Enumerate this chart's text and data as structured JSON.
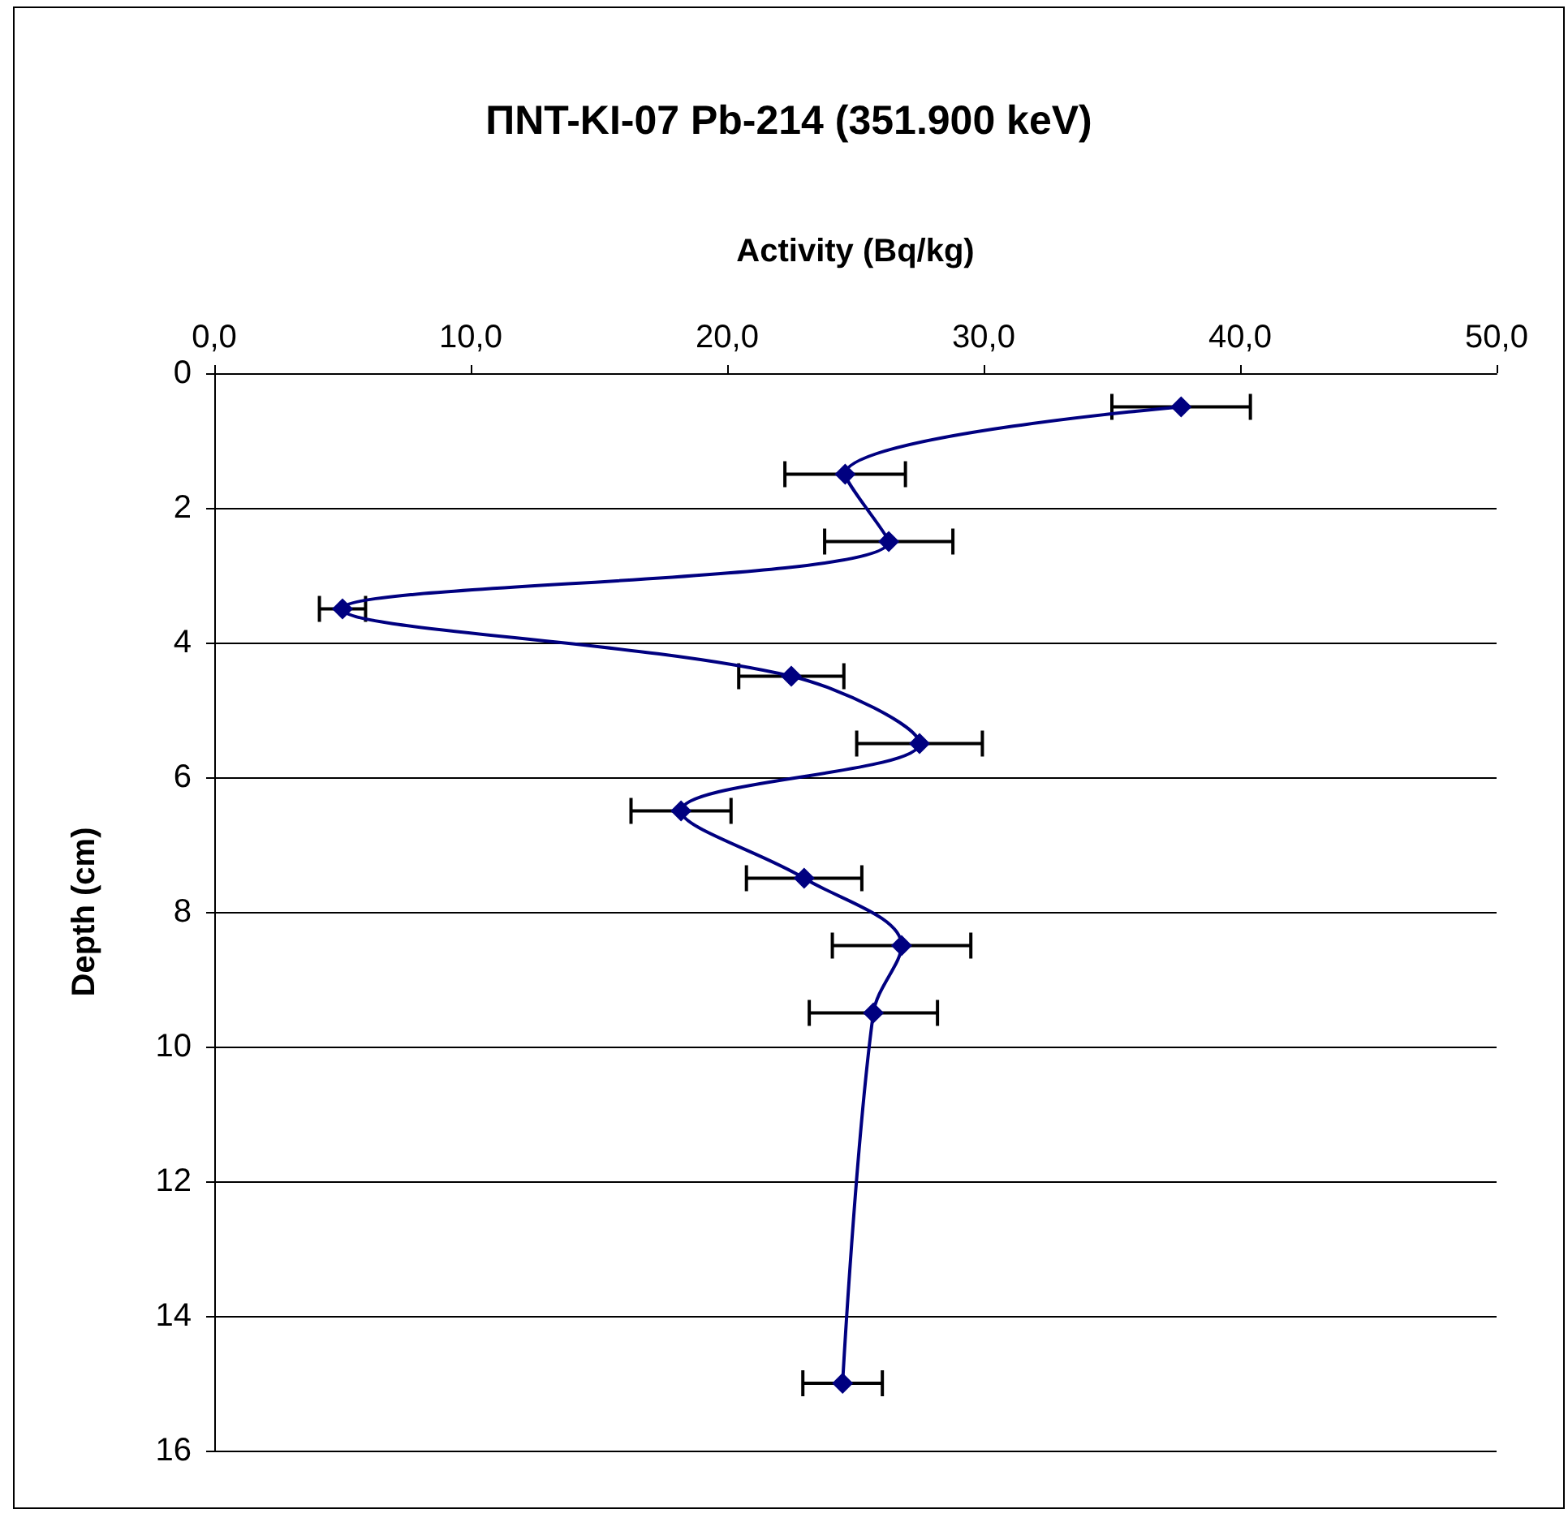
{
  "chart_data": {
    "type": "line",
    "title": "ПNT-KI-07 Pb-214 (351.900 keV)",
    "xlabel": "Activity (Bq/kg)",
    "ylabel": "Depth (cm)",
    "x": [
      37.7,
      24.6,
      26.3,
      5.0,
      22.5,
      27.5,
      18.2,
      23.0,
      26.8,
      25.7,
      24.5
    ],
    "values": [
      0.5,
      1.5,
      2.5,
      3.5,
      4.5,
      5.5,
      6.5,
      7.5,
      8.5,
      9.5,
      15
    ],
    "xerrors": [
      2.7,
      2.35,
      2.5,
      0.9,
      2.05,
      2.45,
      1.95,
      2.25,
      2.7,
      2.5,
      1.55
    ],
    "color": "#000080",
    "marker": "diamond",
    "line_style": "solid",
    "grid": "y",
    "xlim": [
      0,
      50
    ],
    "xticks": [
      {
        "value": 0,
        "label": "0,0"
      },
      {
        "value": 10,
        "label": "10,0"
      },
      {
        "value": 20,
        "label": "20,0"
      },
      {
        "value": 30,
        "label": "30,0"
      },
      {
        "value": 40,
        "label": "40,0"
      },
      {
        "value": 50,
        "label": "50,0"
      }
    ],
    "ylim": [
      16,
      0
    ],
    "yticks": [
      0,
      2,
      4,
      6,
      8,
      10,
      12,
      14,
      16
    ]
  }
}
